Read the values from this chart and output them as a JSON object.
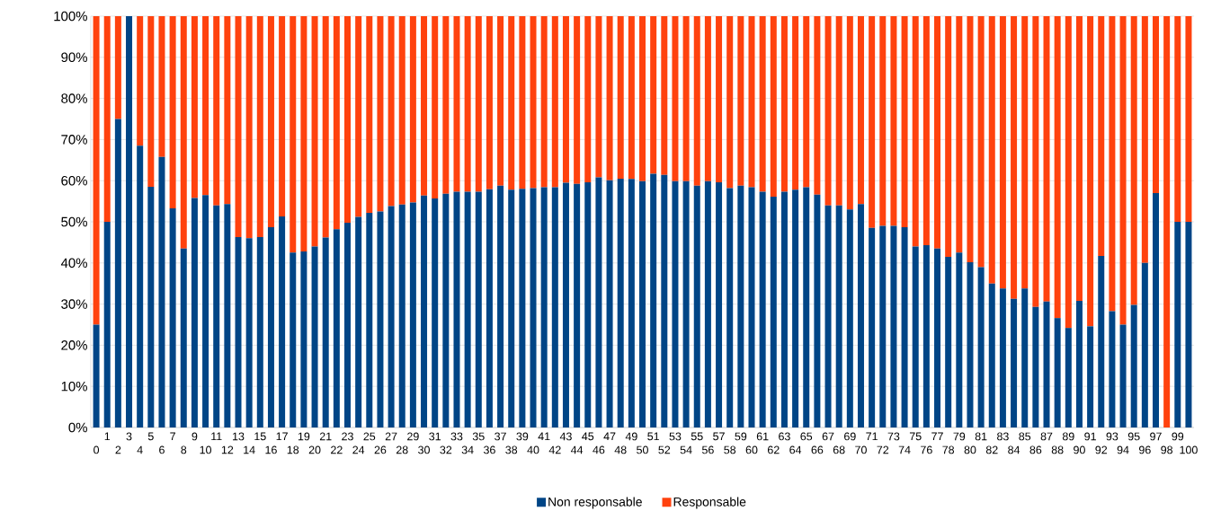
{
  "chart_data": {
    "type": "bar",
    "stacked": true,
    "categories": [
      "0",
      "1",
      "2",
      "3",
      "4",
      "5",
      "6",
      "7",
      "8",
      "9",
      "10",
      "11",
      "12",
      "13",
      "14",
      "15",
      "16",
      "17",
      "18",
      "19",
      "20",
      "21",
      "22",
      "23",
      "24",
      "25",
      "26",
      "27",
      "28",
      "29",
      "30",
      "31",
      "32",
      "33",
      "34",
      "35",
      "36",
      "37",
      "38",
      "39",
      "40",
      "41",
      "42",
      "43",
      "44",
      "45",
      "46",
      "47",
      "48",
      "49",
      "50",
      "51",
      "52",
      "53",
      "54",
      "55",
      "56",
      "57",
      "58",
      "59",
      "60",
      "61",
      "62",
      "63",
      "64",
      "65",
      "66",
      "67",
      "68",
      "69",
      "70",
      "71",
      "72",
      "73",
      "74",
      "75",
      "76",
      "77",
      "78",
      "79",
      "80",
      "81",
      "82",
      "83",
      "84",
      "85",
      "86",
      "87",
      "88",
      "89",
      "90",
      "91",
      "92",
      "93",
      "94",
      "95",
      "96",
      "97",
      "98",
      "99",
      "100"
    ],
    "series": [
      {
        "name": "Non responsable",
        "color": "#004586",
        "values": [
          25,
          50,
          75,
          100,
          68.5,
          58.5,
          65.8,
          53.3,
          43.5,
          55.8,
          56.5,
          54,
          54.3,
          46.3,
          46,
          46.3,
          48.7,
          51.3,
          42.5,
          42.8,
          44,
          46.2,
          48.2,
          49.8,
          51.2,
          52.2,
          52.5,
          53.8,
          54.2,
          54.7,
          56.4,
          55.7,
          56.8,
          57.3,
          57.3,
          57.3,
          57.9,
          58.8,
          57.8,
          58,
          58.2,
          58.4,
          58.4,
          59.5,
          59.2,
          59.6,
          60.8,
          60.1,
          60.5,
          60.4,
          59.9,
          61.7,
          61.4,
          59.9,
          59.9,
          58.8,
          59.9,
          59.6,
          58.2,
          58.8,
          58.4,
          57.3,
          56.1,
          57.3,
          57.8,
          58.4,
          56.6,
          54,
          54,
          53,
          54.3,
          48.5,
          49,
          49,
          48.7,
          44,
          44.3,
          43.5,
          41.5,
          42.5,
          40.2,
          39,
          35,
          33.8,
          31.3,
          33.8,
          29.3,
          30.6,
          26.6,
          24.2,
          30.8,
          24.6,
          41.7,
          28.3,
          25,
          29.8,
          40,
          57,
          0,
          50,
          50
        ]
      },
      {
        "name": "Responsable",
        "color": "#ff420e",
        "values": [
          75,
          50,
          25,
          0,
          31.5,
          41.5,
          34.2,
          46.7,
          56.5,
          44.2,
          43.5,
          46,
          45.7,
          53.7,
          54,
          53.7,
          51.3,
          48.7,
          57.5,
          57.2,
          56,
          53.8,
          51.8,
          50.2,
          48.8,
          47.8,
          47.5,
          46.2,
          45.8,
          45.3,
          43.6,
          44.3,
          43.2,
          42.7,
          42.7,
          42.7,
          42.1,
          41.2,
          42.2,
          42,
          41.8,
          41.6,
          41.6,
          40.5,
          40.8,
          40.4,
          39.2,
          39.9,
          39.5,
          39.6,
          40.1,
          38.3,
          38.6,
          40.1,
          40.1,
          41.2,
          40.1,
          40.4,
          41.8,
          41.2,
          41.6,
          42.7,
          43.9,
          42.7,
          42.2,
          41.6,
          43.4,
          46,
          46,
          47,
          45.7,
          51.5,
          51,
          51,
          51.3,
          56,
          55.7,
          56.5,
          58.5,
          57.5,
          59.8,
          61,
          65,
          66.2,
          68.7,
          66.2,
          70.7,
          69.4,
          73.4,
          75.8,
          69.2,
          75.4,
          58.3,
          71.7,
          75,
          70.2,
          60,
          43,
          100,
          50,
          50
        ]
      }
    ],
    "ylim": [
      0,
      100
    ],
    "yticks": [
      {
        "value": 0,
        "label": "0%"
      },
      {
        "value": 10,
        "label": "10%"
      },
      {
        "value": 20,
        "label": "20%"
      },
      {
        "value": 30,
        "label": "30%"
      },
      {
        "value": 40,
        "label": "40%"
      },
      {
        "value": 50,
        "label": "50%"
      },
      {
        "value": 60,
        "label": "60%"
      },
      {
        "value": 70,
        "label": "70%"
      },
      {
        "value": 80,
        "label": "80%"
      },
      {
        "value": 90,
        "label": "90%"
      },
      {
        "value": 100,
        "label": "100%"
      }
    ],
    "grid": "y",
    "legend": "bottom"
  }
}
